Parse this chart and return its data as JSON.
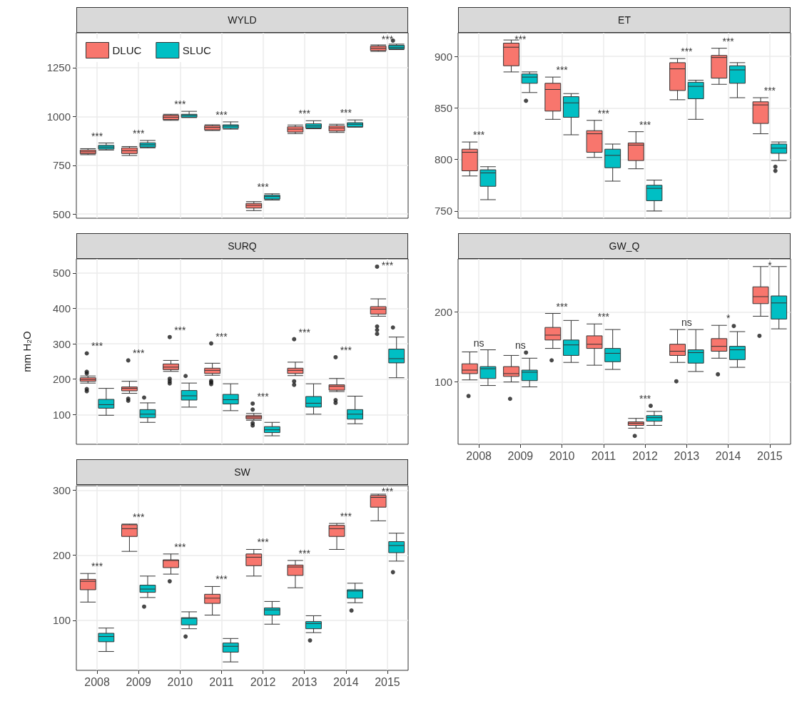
{
  "chart_data": [
    {
      "type": "box",
      "title": "WYLD",
      "categories": [
        "2008",
        "2009",
        "2010",
        "2011",
        "2012",
        "2013",
        "2014",
        "2015"
      ],
      "ylim": [
        479,
        1428
      ],
      "yticks": [
        500,
        750,
        1000,
        1250
      ],
      "grid": true,
      "legend": "top left",
      "tick_labels": "y",
      "series": [
        {
          "name": "DLUC",
          "color": "#f8766d",
          "boxes": [
            {
              "low": 804,
              "q1": 809,
              "median": 819,
              "q3": 828,
              "high": 835
            },
            {
              "low": 800,
              "q1": 810,
              "median": 825,
              "q3": 839,
              "high": 846
            },
            {
              "low": 980,
              "q1": 984,
              "median": 996,
              "q3": 1006,
              "high": 1011
            },
            {
              "low": 928,
              "q1": 931,
              "median": 944,
              "q3": 953,
              "high": 957
            },
            {
              "low": 518,
              "q1": 531,
              "median": 545,
              "q3": 555,
              "high": 564
            },
            {
              "low": 912,
              "q1": 920,
              "median": 935,
              "q3": 947,
              "high": 956
            },
            {
              "low": 918,
              "q1": 925,
              "median": 941,
              "q3": 952,
              "high": 960
            },
            {
              "low": 1333,
              "q1": 1337,
              "median": 1349,
              "q3": 1360,
              "high": 1366
            }
          ]
        },
        {
          "name": "SLUC",
          "color": "#00bfc4",
          "boxes": [
            {
              "low": 828,
              "q1": 833,
              "median": 843,
              "q3": 852,
              "high": 864
            },
            {
              "low": 839,
              "q1": 843,
              "median": 855,
              "q3": 865,
              "high": 877
            },
            {
              "low": 994,
              "q1": 996,
              "median": 1005,
              "q3": 1011,
              "high": 1026
            },
            {
              "low": 935,
              "q1": 939,
              "median": 950,
              "q3": 957,
              "high": 972
            },
            {
              "low": 572,
              "q1": 577,
              "median": 590,
              "q3": 597,
              "high": 604
            },
            {
              "low": 937,
              "q1": 941,
              "median": 951,
              "q3": 962,
              "high": 978
            },
            {
              "low": 945,
              "q1": 947,
              "median": 960,
              "q3": 968,
              "high": 982
            },
            {
              "low": 1342,
              "q1": 1346,
              "median": 1354,
              "q3": 1364,
              "high": 1370,
              "outliers": [
                1388
              ]
            }
          ]
        }
      ],
      "annotations": [
        "***",
        "***",
        "***",
        "***",
        "***",
        "***",
        "***",
        "***"
      ]
    },
    {
      "type": "box",
      "title": "ET",
      "categories": [
        "2008",
        "2009",
        "2010",
        "2011",
        "2012",
        "2013",
        "2014",
        "2015"
      ],
      "ylim": [
        743,
        923
      ],
      "yticks": [
        750,
        800,
        850,
        900
      ],
      "grid": true,
      "tick_labels": "y",
      "series": [
        {
          "color": "#f8766d",
          "boxes": [
            {
              "low": 784,
              "q1": 789,
              "median": 807,
              "q3": 810,
              "high": 817
            },
            {
              "low": 885,
              "q1": 891,
              "median": 909,
              "q3": 913,
              "high": 916
            },
            {
              "low": 839,
              "q1": 847,
              "median": 868,
              "q3": 874,
              "high": 880
            },
            {
              "low": 802,
              "q1": 807,
              "median": 825,
              "q3": 828,
              "high": 838
            },
            {
              "low": 791,
              "q1": 799,
              "median": 814,
              "q3": 816,
              "high": 827
            },
            {
              "low": 858,
              "q1": 867,
              "median": 888,
              "q3": 894,
              "high": 898
            },
            {
              "low": 873,
              "q1": 879,
              "median": 899,
              "q3": 901,
              "high": 908
            },
            {
              "low": 825,
              "q1": 835,
              "median": 853,
              "q3": 856,
              "high": 860
            }
          ]
        },
        {
          "color": "#00bfc4",
          "boxes": [
            {
              "low": 761,
              "q1": 774,
              "median": 787,
              "q3": 790,
              "high": 793
            },
            {
              "low": 865,
              "q1": 874,
              "median": 880,
              "q3": 883,
              "high": 885,
              "outliers": [
                857
              ]
            },
            {
              "low": 824,
              "q1": 841,
              "median": 855,
              "q3": 861,
              "high": 864
            },
            {
              "low": 779,
              "q1": 792,
              "median": 804,
              "q3": 810,
              "high": 815
            },
            {
              "low": 750,
              "q1": 760,
              "median": 772,
              "q3": 775,
              "high": 780
            },
            {
              "low": 839,
              "q1": 859,
              "median": 871,
              "q3": 875,
              "high": 877
            },
            {
              "low": 860,
              "q1": 874,
              "median": 887,
              "q3": 891,
              "high": 894
            },
            {
              "low": 799,
              "q1": 806,
              "median": 811,
              "q3": 815,
              "high": 817,
              "outliers": [
                793,
                789
              ]
            }
          ]
        }
      ],
      "annotations": [
        "***",
        "***",
        "***",
        "***",
        "***",
        "***",
        "***",
        "***"
      ]
    },
    {
      "type": "box",
      "title": "SURQ",
      "ylabel": "mm H₂O",
      "categories": [
        "2008",
        "2009",
        "2010",
        "2011",
        "2012",
        "2013",
        "2014",
        "2015"
      ],
      "ylim": [
        16,
        540
      ],
      "yticks": [
        100,
        200,
        300,
        400,
        500
      ],
      "grid": true,
      "tick_labels": "y",
      "series": [
        {
          "color": "#f8766d",
          "boxes": [
            {
              "low": 189,
              "q1": 194,
              "median": 199,
              "q3": 204,
              "high": 209,
              "outliers": [
                273,
                221,
                216,
                172,
                166
              ]
            },
            {
              "low": 160,
              "q1": 167,
              "median": 174,
              "q3": 178,
              "high": 194,
              "outliers": [
                253,
                145,
                139
              ]
            },
            {
              "low": 222,
              "q1": 227,
              "median": 234,
              "q3": 243,
              "high": 253,
              "outliers": [
                319,
                201,
                194,
                188
              ]
            },
            {
              "low": 211,
              "q1": 216,
              "median": 225,
              "q3": 231,
              "high": 245,
              "outliers": [
                301,
                195,
                191,
                186
              ]
            },
            {
              "low": 84,
              "q1": 88,
              "median": 93,
              "q3": 97,
              "high": 103,
              "outliers": [
                131,
                114,
                76,
                69
              ]
            },
            {
              "low": 210,
              "q1": 216,
              "median": 225,
              "q3": 231,
              "high": 248,
              "outliers": [
                313,
                194,
                184
              ]
            },
            {
              "low": 165,
              "q1": 169,
              "median": 180,
              "q3": 184,
              "high": 202,
              "outliers": [
                262,
                141,
                133
              ]
            },
            {
              "low": 378,
              "q1": 384,
              "median": 398,
              "q3": 405,
              "high": 427,
              "outliers": [
                518,
                349,
                339,
                328
              ]
            }
          ]
        },
        {
          "color": "#00bfc4",
          "boxes": [
            {
              "low": 98,
              "q1": 118,
              "median": 128,
              "q3": 143,
              "high": 174
            },
            {
              "low": 78,
              "q1": 91,
              "median": 101,
              "q3": 114,
              "high": 133,
              "outliers": [
                148
              ]
            },
            {
              "low": 121,
              "q1": 141,
              "median": 153,
              "q3": 168,
              "high": 189,
              "outliers": [
                209
              ]
            },
            {
              "low": 111,
              "q1": 130,
              "median": 142,
              "q3": 157,
              "high": 187
            },
            {
              "low": 40,
              "q1": 49,
              "median": 57,
              "q3": 66,
              "high": 78
            },
            {
              "low": 101,
              "q1": 121,
              "median": 132,
              "q3": 151,
              "high": 187
            },
            {
              "low": 74,
              "q1": 87,
              "median": 101,
              "q3": 114,
              "high": 152
            },
            {
              "low": 204,
              "q1": 246,
              "median": 258,
              "q3": 285,
              "high": 319,
              "outliers": [
                346
              ]
            }
          ]
        }
      ],
      "annotations": [
        "***",
        "***",
        "***",
        "***",
        "***",
        "***",
        "***",
        "***"
      ]
    },
    {
      "type": "box",
      "title": "GW_Q",
      "categories": [
        "2008",
        "2009",
        "2010",
        "2011",
        "2012",
        "2013",
        "2014",
        "2015"
      ],
      "ylim": [
        11,
        276
      ],
      "yticks": [
        100,
        200
      ],
      "grid": true,
      "series": [
        {
          "color": "#f8766d",
          "boxes": [
            {
              "low": 103,
              "q1": 112,
              "median": 117,
              "q3": 126,
              "high": 143,
              "outliers": [
                80
              ]
            },
            {
              "low": 100,
              "q1": 108,
              "median": 112,
              "q3": 122,
              "high": 138,
              "outliers": [
                76
              ]
            },
            {
              "low": 148,
              "q1": 160,
              "median": 167,
              "q3": 178,
              "high": 198,
              "outliers": [
                131
              ]
            },
            {
              "low": 124,
              "q1": 148,
              "median": 154,
              "q3": 166,
              "high": 183
            },
            {
              "low": 34,
              "q1": 38,
              "median": 41,
              "q3": 43,
              "high": 48,
              "outliers": [
                23
              ]
            },
            {
              "low": 128,
              "q1": 138,
              "median": 144,
              "q3": 154,
              "high": 175,
              "outliers": [
                101
              ]
            },
            {
              "low": 134,
              "q1": 144,
              "median": 151,
              "q3": 162,
              "high": 181,
              "outliers": [
                111
              ]
            },
            {
              "low": 194,
              "q1": 212,
              "median": 222,
              "q3": 236,
              "high": 265,
              "outliers": [
                166
              ]
            }
          ]
        },
        {
          "color": "#00bfc4",
          "boxes": [
            {
              "low": 95,
              "q1": 105,
              "median": 119,
              "q3": 122,
              "high": 146
            },
            {
              "low": 93,
              "q1": 102,
              "median": 114,
              "q3": 117,
              "high": 134,
              "outliers": [
                142
              ]
            },
            {
              "low": 128,
              "q1": 138,
              "median": 153,
              "q3": 160,
              "high": 188
            },
            {
              "low": 118,
              "q1": 129,
              "median": 141,
              "q3": 148,
              "high": 175
            },
            {
              "low": 38,
              "q1": 44,
              "median": 49,
              "q3": 52,
              "high": 58,
              "outliers": [
                66
              ]
            },
            {
              "low": 115,
              "q1": 127,
              "median": 142,
              "q3": 146,
              "high": 175
            },
            {
              "low": 121,
              "q1": 132,
              "median": 146,
              "q3": 151,
              "high": 172,
              "outliers": [
                180
              ]
            },
            {
              "low": 176,
              "q1": 190,
              "median": 213,
              "q3": 223,
              "high": 265
            }
          ]
        }
      ],
      "annotations": [
        "ns",
        "ns",
        "***",
        "***",
        "***",
        "ns",
        "*",
        "*"
      ]
    },
    {
      "type": "box",
      "title": "SW",
      "categories": [
        "2008",
        "2009",
        "2010",
        "2011",
        "2012",
        "2013",
        "2014",
        "2015"
      ],
      "ylim": [
        23,
        307
      ],
      "yticks": [
        100,
        200,
        300
      ],
      "grid": true,
      "series": [
        {
          "color": "#f8766d",
          "boxes": [
            {
              "low": 128,
              "q1": 147,
              "median": 160,
              "q3": 163,
              "high": 172
            },
            {
              "low": 206,
              "q1": 229,
              "median": 241,
              "q3": 247,
              "high": 248
            },
            {
              "low": 171,
              "q1": 181,
              "median": 192,
              "q3": 193,
              "high": 202,
              "outliers": [
                160
              ]
            },
            {
              "low": 108,
              "q1": 126,
              "median": 134,
              "q3": 140,
              "high": 152
            },
            {
              "low": 168,
              "q1": 184,
              "median": 197,
              "q3": 202,
              "high": 209
            },
            {
              "low": 150,
              "q1": 169,
              "median": 182,
              "q3": 185,
              "high": 192
            },
            {
              "low": 209,
              "q1": 229,
              "median": 241,
              "q3": 246,
              "high": 249
            },
            {
              "low": 253,
              "q1": 274,
              "median": 289,
              "q3": 292,
              "high": 294
            }
          ]
        },
        {
          "color": "#00bfc4",
          "boxes": [
            {
              "low": 52,
              "q1": 67,
              "median": 75,
              "q3": 80,
              "high": 88
            },
            {
              "low": 135,
              "q1": 143,
              "median": 148,
              "q3": 154,
              "high": 168,
              "outliers": [
                121
              ]
            },
            {
              "low": 87,
              "q1": 93,
              "median": 103,
              "q3": 104,
              "high": 113,
              "outliers": [
                75
              ]
            },
            {
              "low": 36,
              "q1": 51,
              "median": 60,
              "q3": 65,
              "high": 72
            },
            {
              "low": 94,
              "q1": 108,
              "median": 116,
              "q3": 119,
              "high": 129
            },
            {
              "low": 81,
              "q1": 87,
              "median": 95,
              "q3": 98,
              "high": 107,
              "outliers": [
                69
              ]
            },
            {
              "low": 127,
              "q1": 134,
              "median": 145,
              "q3": 147,
              "high": 157,
              "outliers": [
                115
              ]
            },
            {
              "low": 191,
              "q1": 204,
              "median": 215,
              "q3": 221,
              "high": 234,
              "outliers": [
                174
              ]
            }
          ]
        }
      ],
      "annotations": [
        "***",
        "***",
        "***",
        "***",
        "***",
        "***",
        "***",
        "***"
      ]
    }
  ]
}
